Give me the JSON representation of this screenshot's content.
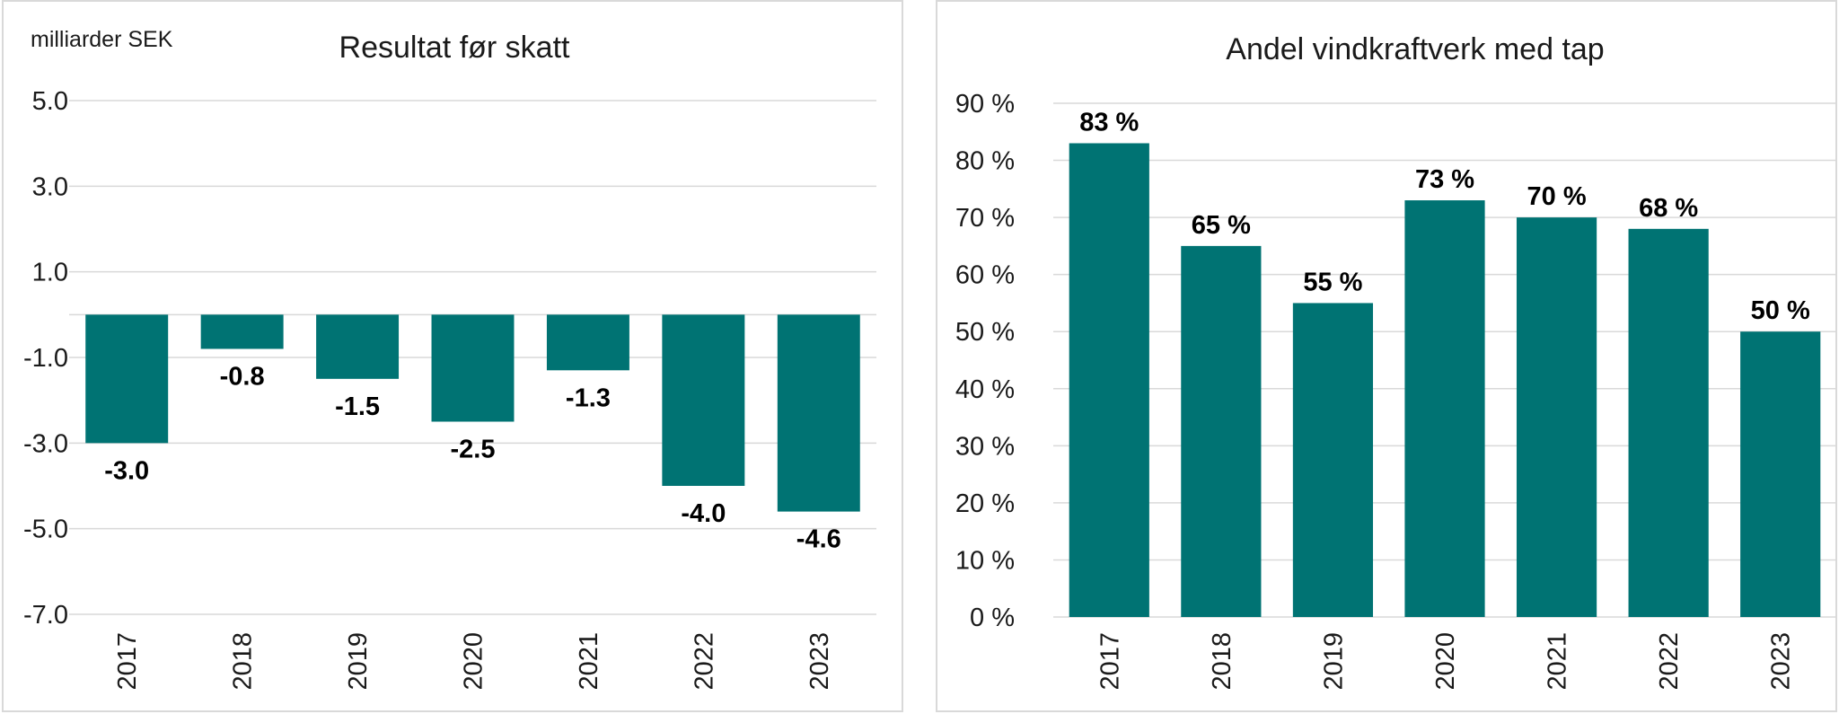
{
  "chart_data": [
    {
      "type": "bar",
      "title": "Resultat før skatt",
      "unit_label": "milliarder SEK",
      "categories": [
        "2017",
        "2018",
        "2019",
        "2020",
        "2021",
        "2022",
        "2023"
      ],
      "values": [
        -3.0,
        -0.8,
        -1.5,
        -2.5,
        -1.3,
        -4.0,
        -4.6
      ],
      "value_labels": [
        "-3.0",
        "-0.8",
        "-1.5",
        "-2.5",
        "-1.3",
        "-4.0",
        "-4.6"
      ],
      "yticks": [
        "5.0",
        "3.0",
        "1.0",
        "-1.0",
        "-3.0",
        "-5.0",
        "-7.0"
      ],
      "ylim": [
        -7.0,
        5.0
      ],
      "grid": true,
      "bar_color": "#007373"
    },
    {
      "type": "bar",
      "title": "Andel vindkraftverk med tap",
      "categories": [
        "2017",
        "2018",
        "2019",
        "2020",
        "2021",
        "2022",
        "2023"
      ],
      "values": [
        83,
        65,
        55,
        73,
        70,
        68,
        50
      ],
      "value_labels": [
        "83 %",
        "65 %",
        "55 %",
        "73 %",
        "70 %",
        "68 %",
        "50 %"
      ],
      "yticks": [
        "90 %",
        "80 %",
        "70 %",
        "60 %",
        "50 %",
        "40 %",
        "30 %",
        "20 %",
        "10 %",
        "0 %"
      ],
      "ylim": [
        0,
        90
      ],
      "grid": true,
      "bar_color": "#007373"
    }
  ]
}
